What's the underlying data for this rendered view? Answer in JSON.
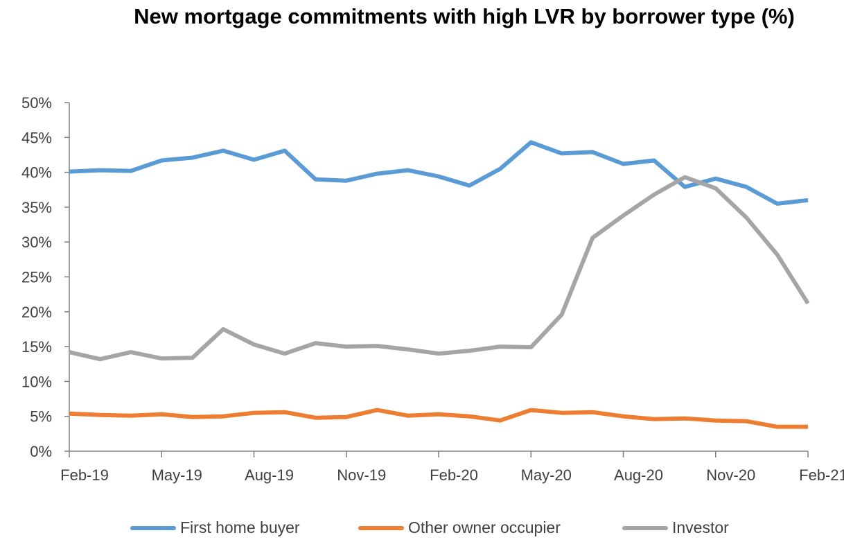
{
  "colors": {
    "first_home_buyer": "#5B9BD5",
    "other_owner_occupier": "#ED7D31",
    "investor": "#A5A5A5",
    "axis": "#7F7F7F"
  },
  "chart_data": {
    "type": "line",
    "title": "New mortgage commitments with high LVR by borrower type (%)",
    "xlabel": "",
    "ylabel": "",
    "ylim": [
      0,
      50
    ],
    "y_ticks": [
      "0%",
      "5%",
      "10%",
      "15%",
      "20%",
      "25%",
      "30%",
      "35%",
      "40%",
      "45%",
      "50%"
    ],
    "x": [
      "Feb-19",
      "Mar-19",
      "Apr-19",
      "May-19",
      "Jun-19",
      "Jul-19",
      "Aug-19",
      "Sep-19",
      "Oct-19",
      "Nov-19",
      "Dec-19",
      "Jan-20",
      "Feb-20",
      "Mar-20",
      "Apr-20",
      "May-20",
      "Jun-20",
      "Jul-20",
      "Aug-20",
      "Sep-20",
      "Oct-20",
      "Nov-20",
      "Dec-20",
      "Jan-21",
      "Feb-21"
    ],
    "x_tick_labels": [
      "Feb-19",
      "May-19",
      "Aug-19",
      "Nov-19",
      "Feb-20",
      "May-20",
      "Aug-20",
      "Nov-20",
      "Feb-21"
    ],
    "grid": false,
    "legend_position": "bottom",
    "series": [
      {
        "name": "First home buyer",
        "color_key": "first_home_buyer",
        "values": [
          40.1,
          40.3,
          40.2,
          41.7,
          42.1,
          43.1,
          41.8,
          43.1,
          39.0,
          38.8,
          39.8,
          40.3,
          39.4,
          38.1,
          40.5,
          44.3,
          42.7,
          42.9,
          41.2,
          41.7,
          37.9,
          39.1,
          37.9,
          35.5,
          36.0
        ]
      },
      {
        "name": "Other owner occupier",
        "color_key": "other_owner_occupier",
        "values": [
          5.4,
          5.2,
          5.1,
          5.3,
          4.9,
          5.0,
          5.5,
          5.6,
          4.8,
          4.9,
          5.9,
          5.1,
          5.3,
          5.0,
          4.4,
          5.9,
          5.5,
          5.6,
          5.0,
          4.6,
          4.7,
          4.4,
          4.3,
          3.5,
          3.5
        ]
      },
      {
        "name": "Investor",
        "color_key": "investor",
        "values": [
          14.2,
          13.2,
          14.2,
          13.3,
          13.4,
          17.5,
          15.3,
          14.0,
          15.5,
          15.0,
          15.1,
          14.6,
          14.0,
          14.4,
          15.0,
          14.9,
          19.6,
          30.6,
          33.8,
          36.8,
          39.3,
          37.7,
          33.5,
          28.2,
          21.2
        ]
      }
    ]
  }
}
